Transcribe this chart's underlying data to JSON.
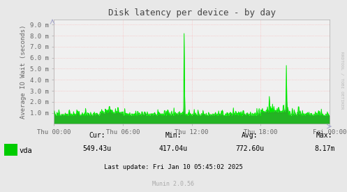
{
  "title": "Disk latency per device - by day",
  "ylabel": "Average IO Wait (seconds)",
  "background_color": "#e8e8e8",
  "plot_background_color": "#f0f0f0",
  "grid_color": "#ff9999",
  "line_color": "#00ee00",
  "line_fill_color": "#00aa00",
  "yticks_labels": [
    "9.0 m",
    "8.0 m",
    "7.0 m",
    "6.0 m",
    "5.0 m",
    "4.0 m",
    "3.0 m",
    "2.0 m",
    "1.0 m"
  ],
  "yticks_values": [
    0.009,
    0.008,
    0.007,
    0.006,
    0.005,
    0.004,
    0.003,
    0.002,
    0.001
  ],
  "ymax": 0.0095,
  "ymin": 0.0,
  "xtick_labels": [
    "Thu 00:00",
    "Thu 06:00",
    "Thu 12:00",
    "Thu 18:00",
    "Fri 00:00"
  ],
  "legend_label": "vda",
  "legend_color": "#00cc00",
  "stats_cur": "549.43u",
  "stats_min": "417.04u",
  "stats_avg": "772.60u",
  "stats_max": "8.17m",
  "last_update": "Last update: Fri Jan 10 05:45:02 2025",
  "munin_version": "Munin 2.0.56",
  "watermark": "RRDTOOL / TOBI OETIKER",
  "title_color": "#444444",
  "text_color": "#666666",
  "axis_color": "#aaaacc",
  "border_color": "#aaaaaa"
}
